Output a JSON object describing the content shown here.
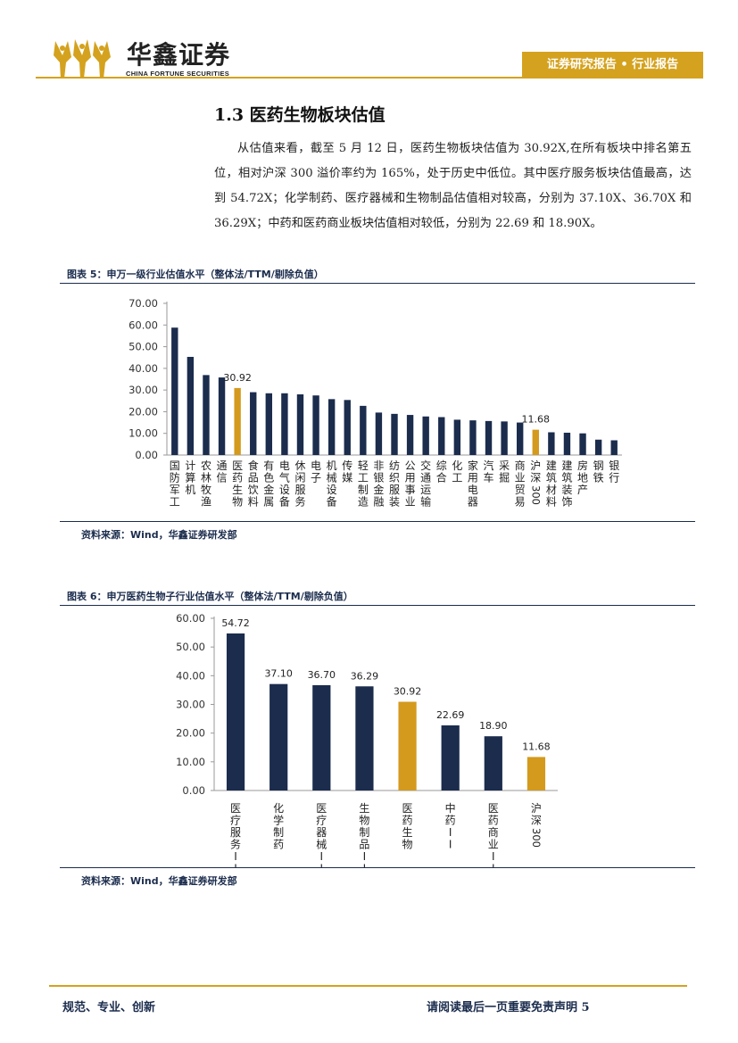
{
  "header": {
    "brand_cn": "华鑫证券",
    "brand_en": "CHINA FORTUNE SECURITIES",
    "report_label": "证券研究报告 • 行业报告"
  },
  "section": {
    "title": "1.3 医药生物板块估值",
    "body": "从估值来看，截至 5 月 12 日，医药生物板块估值为 30.92X,在所有板块中排名第五位，相对沪深 300 溢价率约为 165%，处于历史中低位。其中医疗服务板块估值最高，达到 54.72X；化学制药、医疗器械和生物制品估值相对较高，分别为 37.10X、36.70X 和 36.29X；中药和医药商业板块估值相对较低，分别为 22.69 和 18.90X。"
  },
  "figure5": {
    "title": "图表 5：申万一级行业估值水平（整体法/TTM/剔除负值）",
    "source": "资料来源：Wind，华鑫证券研发部"
  },
  "figure6": {
    "title": "图表 6：申万医药生物子行业估值水平（整体法/TTM/剔除负值）",
    "source": "资料来源：Wind，华鑫证券研发部"
  },
  "footer": {
    "left": "规范、专业、创新",
    "right": "请阅读最后一页重要免责声明 5"
  },
  "colors": {
    "navy": "#1b2c4d",
    "gold": "#d49a1e"
  },
  "chart_data": [
    {
      "type": "bar",
      "categories": [
        "国防军工",
        "计算机",
        "农林牧渔",
        "通信",
        "医药生物",
        "食品饮料",
        "有色金属",
        "电气设备",
        "休闲服务",
        "电子",
        "机械设备",
        "传媒",
        "轻工制造",
        "非银金融",
        "纺织服装",
        "公用事业",
        "交通运输",
        "综合",
        "化工",
        "家用电器",
        "汽车",
        "采掘",
        "商业贸易",
        "沪深300",
        "建筑材料",
        "建筑装饰",
        "房地产",
        "钢铁",
        "银行"
      ],
      "values": [
        58.8,
        45.3,
        36.9,
        35.8,
        30.92,
        29.0,
        28.5,
        28.5,
        28.0,
        27.5,
        25.8,
        25.4,
        22.7,
        19.6,
        19.0,
        18.5,
        17.8,
        17.5,
        16.3,
        16.0,
        15.7,
        15.5,
        15.0,
        11.68,
        10.5,
        10.3,
        10.0,
        7.1,
        6.8
      ],
      "highlight": [
        "医药生物",
        "沪深300"
      ],
      "data_labels": {
        "医药生物": "30.92",
        "沪深300": "11.68"
      },
      "y_ticks": [
        "0.00",
        "10.00",
        "20.00",
        "30.00",
        "40.00",
        "50.00",
        "60.00",
        "70.00"
      ],
      "ylim": [
        0,
        70
      ]
    },
    {
      "type": "bar",
      "categories": [
        "医疗服务II",
        "化学制药",
        "医疗器械II",
        "生物制品II",
        "医药生物",
        "中药II",
        "医药商业II",
        "沪深300"
      ],
      "values": [
        54.72,
        37.1,
        36.7,
        36.29,
        30.92,
        22.69,
        18.9,
        11.68
      ],
      "data_labels": [
        "54.72",
        "37.10",
        "36.70",
        "36.29",
        "30.92",
        "22.69",
        "18.90",
        "11.68"
      ],
      "highlight": [
        "医药生物",
        "沪深300"
      ],
      "y_ticks": [
        "0.00",
        "10.00",
        "20.00",
        "30.00",
        "40.00",
        "50.00",
        "60.00"
      ],
      "ylim": [
        0,
        60
      ]
    }
  ]
}
